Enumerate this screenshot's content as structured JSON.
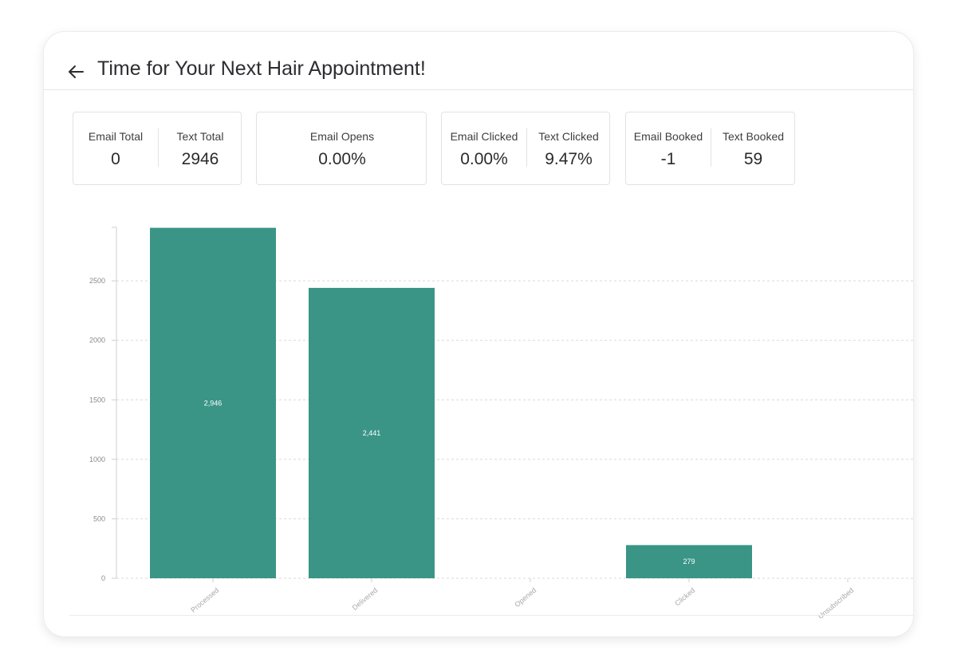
{
  "page": {
    "title": "Time for Your Next Hair Appointment!"
  },
  "stats": {
    "totals": {
      "email_label": "Email Total",
      "email_value": "0",
      "text_label": "Text Total",
      "text_value": "2946"
    },
    "opens": {
      "label": "Email Opens",
      "value": "0.00%"
    },
    "clicked": {
      "email_label": "Email Clicked",
      "email_value": "0.00%",
      "text_label": "Text Clicked",
      "text_value": "9.47%"
    },
    "booked": {
      "email_label": "Email Booked",
      "email_value": "-1",
      "text_label": "Text Booked",
      "text_value": "59"
    }
  },
  "colors": {
    "bar": "#3a9586",
    "grid": "#d9d9d9",
    "axis": "#cfcfcf",
    "tick_text": "#8a8a8a",
    "bar_label": "#ffffff"
  },
  "chart_data": {
    "type": "bar",
    "categories": [
      "Processed",
      "Delivered",
      "Opened",
      "Clicked",
      "Unsubscribed"
    ],
    "values": [
      2946,
      2441,
      0,
      279,
      0
    ],
    "data_labels": [
      "2,946",
      "2,441",
      "",
      "279",
      ""
    ],
    "yticks": [
      0,
      500,
      1000,
      1500,
      2000,
      2500
    ],
    "ylim": [
      0,
      2950
    ],
    "grid": true
  }
}
